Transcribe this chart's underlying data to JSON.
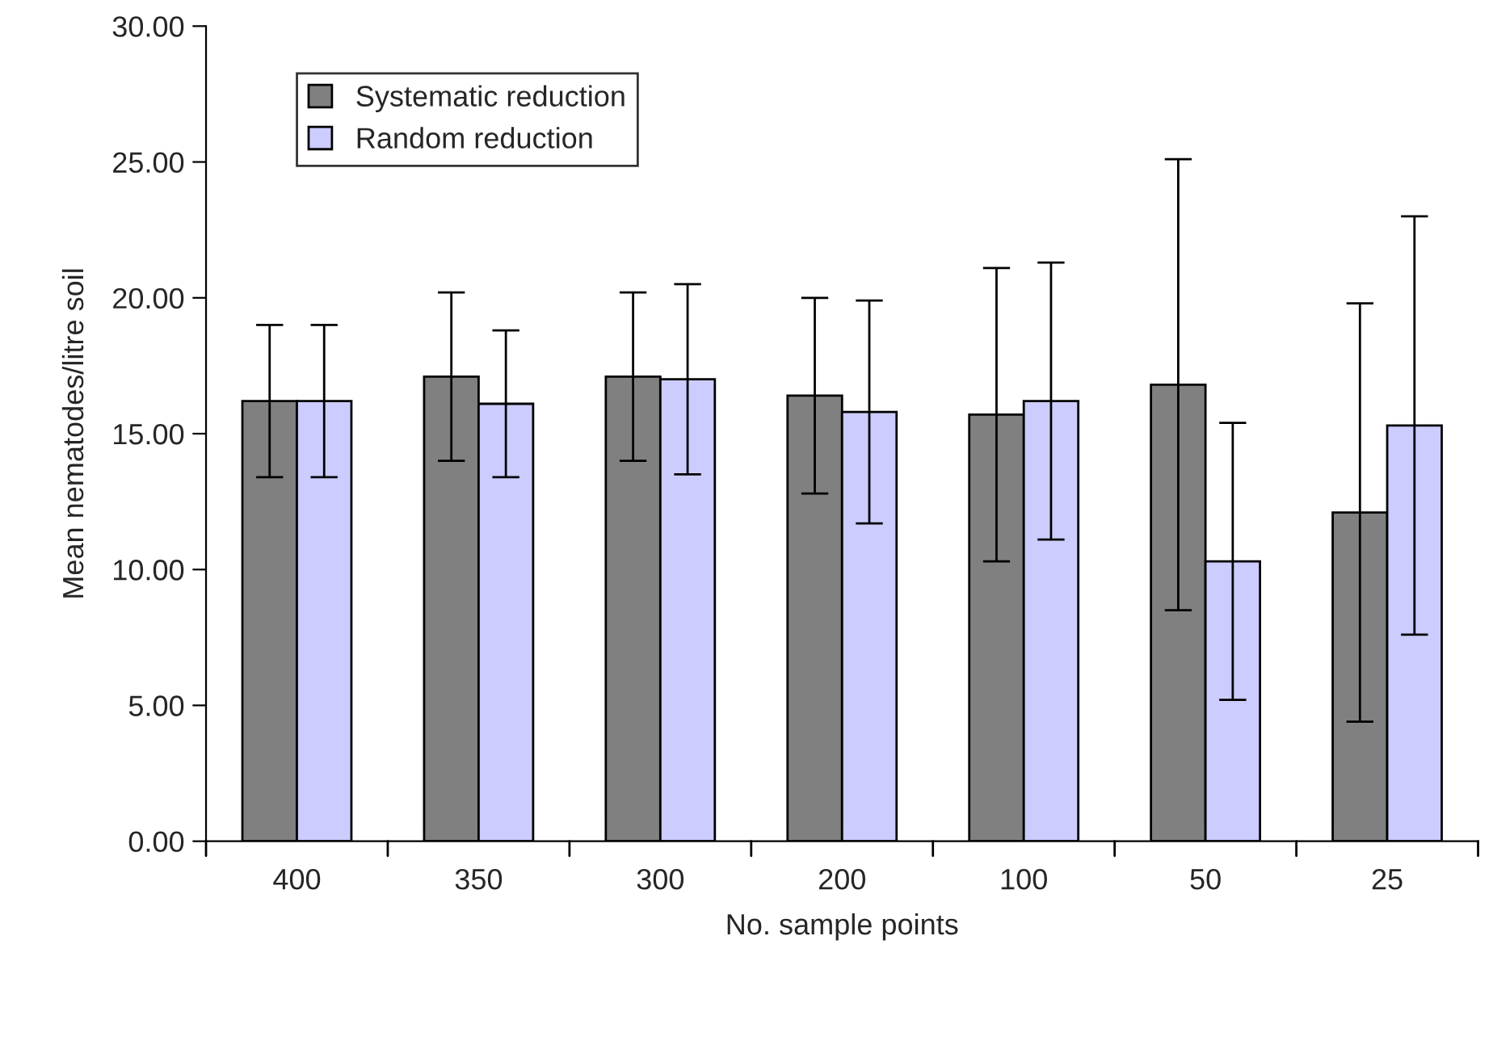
{
  "chart_data": {
    "type": "bar",
    "xlabel": "No. sample points",
    "ylabel": "Mean nematodes/litre soil",
    "categories": [
      "400",
      "350",
      "300",
      "200",
      "100",
      "50",
      "25"
    ],
    "series": [
      {
        "name": "Systematic reduction",
        "color": "#808080",
        "values": [
          16.2,
          17.1,
          17.1,
          16.4,
          15.7,
          16.8,
          12.1
        ],
        "errors": [
          2.8,
          3.1,
          3.1,
          3.6,
          5.4,
          8.3,
          7.7
        ]
      },
      {
        "name": "Random reduction",
        "color": "#ccccff",
        "values": [
          16.2,
          16.1,
          17.0,
          15.8,
          16.2,
          10.3,
          15.3
        ],
        "errors": [
          2.8,
          2.7,
          3.5,
          4.1,
          5.1,
          5.1,
          7.7
        ]
      }
    ],
    "ylim": [
      0,
      30
    ],
    "yticks": [
      {
        "value": 0,
        "label": "0.00"
      },
      {
        "value": 5,
        "label": "5.00"
      },
      {
        "value": 10,
        "label": "10.00"
      },
      {
        "value": 15,
        "label": "15.00"
      },
      {
        "value": 20,
        "label": "20.00"
      },
      {
        "value": 25,
        "label": "25.00"
      },
      {
        "value": 30,
        "label": "30.00"
      }
    ],
    "grid": false,
    "legend": "top left"
  }
}
